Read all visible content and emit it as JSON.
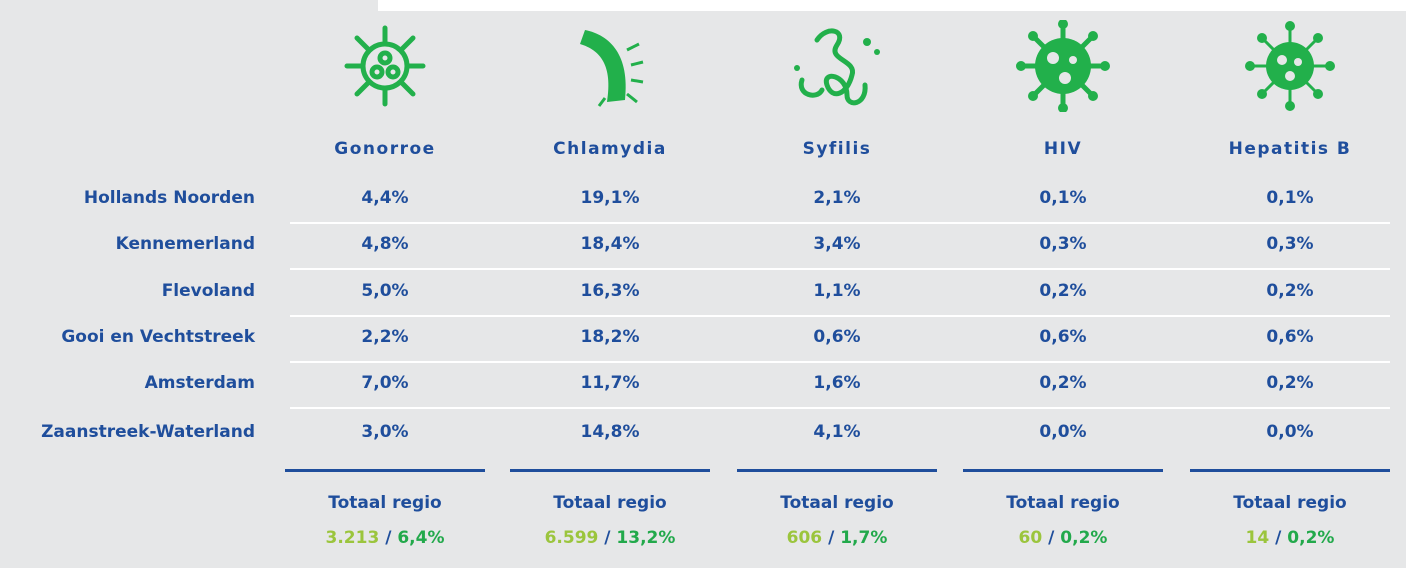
{
  "table": {
    "columns": [
      "Gonorroe",
      "Chlamydia",
      "Syfilis",
      "HIV",
      "Hepatitis B"
    ],
    "rows": [
      {
        "label": "Hollands Noorden",
        "values": [
          "4,4%",
          "19,1%",
          "2,1%",
          "0,1%",
          "0,1%"
        ]
      },
      {
        "label": "Kennemerland",
        "values": [
          "4,8%",
          "18,4%",
          "3,4%",
          "0,3%",
          "0,3%"
        ]
      },
      {
        "label": "Flevoland",
        "values": [
          "5,0%",
          "16,3%",
          "1,1%",
          "0,2%",
          "0,2%"
        ]
      },
      {
        "label": "Gooi en Vechtstreek",
        "values": [
          "2,2%",
          "18,2%",
          "0,6%",
          "0,6%",
          "0,6%"
        ]
      },
      {
        "label": "Amsterdam",
        "values": [
          "7,0%",
          "11,7%",
          "1,6%",
          "0,2%",
          "0,2%"
        ]
      },
      {
        "label": "Zaanstreek-Waterland",
        "values": [
          "3,0%",
          "14,8%",
          "4,1%",
          "0,0%",
          "0,0%"
        ]
      }
    ],
    "totals": [
      {
        "label": "Totaal regio",
        "count": "3.213",
        "percent": "6,4%"
      },
      {
        "label": "Totaal regio",
        "count": "6.599",
        "percent": "13,2%"
      },
      {
        "label": "Totaal regio",
        "count": "606",
        "percent": "1,7%"
      },
      {
        "label": "Totaal regio",
        "count": "60",
        "percent": "0,2%"
      },
      {
        "label": "Totaal regio",
        "count": "14",
        "percent": "0,2%"
      }
    ],
    "separator": "/"
  }
}
